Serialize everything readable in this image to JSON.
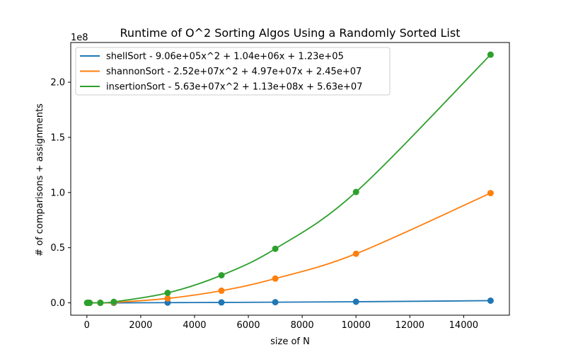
{
  "chart_data": {
    "type": "line",
    "title": "Runtime of O^2 Sorting Algos Using a Randomly Sorted List",
    "xlabel": "size of N",
    "ylabel": "# of comparisons + assignments",
    "y_offset_label": "1e8",
    "xlim": [
      -600,
      15700
    ],
    "ylim": [
      -0.112,
      2.36
    ],
    "y_unit_scale": 100000000,
    "x_ticks": [
      0,
      2000,
      4000,
      6000,
      8000,
      10000,
      12000,
      14000
    ],
    "x_tick_labels": [
      "0",
      "2000",
      "4000",
      "6000",
      "8000",
      "10000",
      "12000",
      "14000"
    ],
    "y_ticks": [
      0.0,
      0.5,
      1.0,
      1.5,
      2.0
    ],
    "y_tick_labels": [
      "0.0",
      "0.5",
      "1.0",
      "1.5",
      "2.0"
    ],
    "grid": false,
    "legend_position": "top-left",
    "x": [
      10,
      50,
      100,
      500,
      1000,
      3000,
      5000,
      7000,
      10000,
      15000
    ],
    "series": [
      {
        "name": "shellSort - 9.06e+05x^2 +  1.04e+06x +  1.23e+05",
        "color": "#1f77b4",
        "values": [
          0.0,
          0.0,
          0.0,
          0.0,
          0.0,
          0.002,
          0.004,
          0.006,
          0.01,
          0.02
        ]
      },
      {
        "name": "shannonSort - 2.52e+07x^2 +  4.97e+07x +  2.45e+07",
        "color": "#ff7f0e",
        "values": [
          0.0,
          0.0,
          0.0,
          0.0,
          0.004,
          0.04,
          0.11,
          0.22,
          0.445,
          0.995
        ]
      },
      {
        "name": "insertionSort - 5.63e+07x^2 +  1.13e+08x +  5.63e+07",
        "color": "#2ca02c",
        "values": [
          0.0,
          0.0,
          0.0,
          0.001,
          0.009,
          0.09,
          0.25,
          0.49,
          1.005,
          2.25
        ]
      }
    ]
  }
}
